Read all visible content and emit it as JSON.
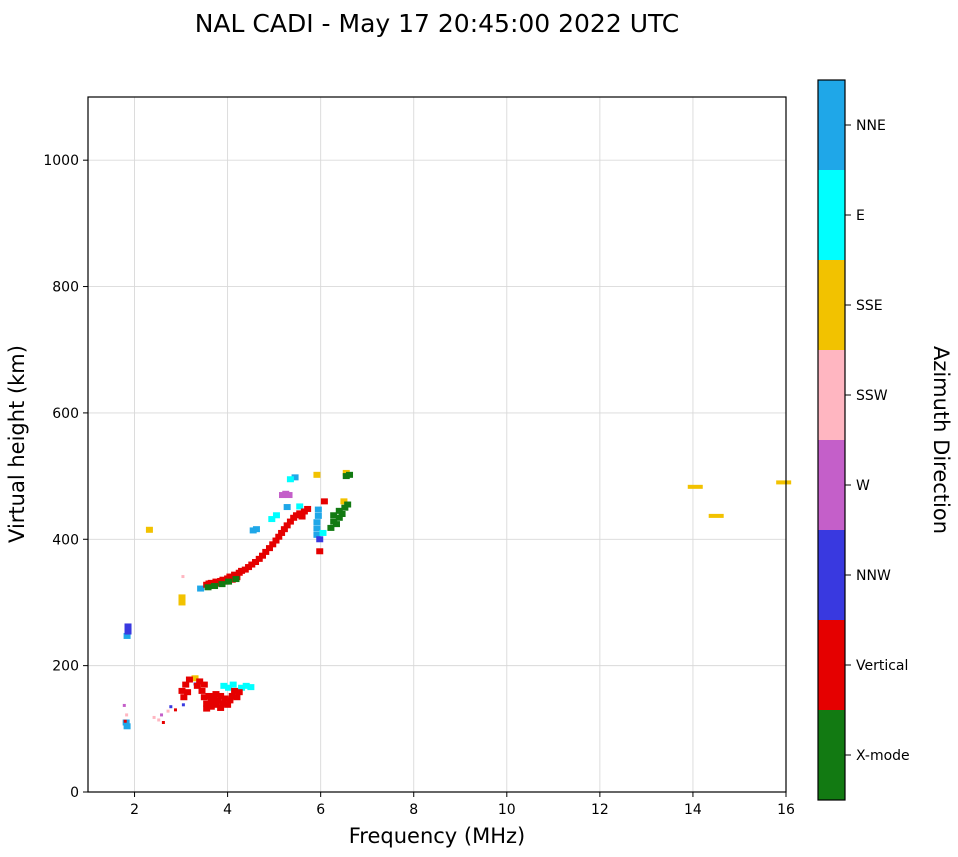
{
  "chart_data": {
    "type": "scatter",
    "title": "NAL CADI - May 17 20:45:00 2022 UTC",
    "xlabel": "Frequency (MHz)",
    "ylabel": "Virtual height (km)",
    "legend_title": "Azimuth Direction",
    "xlim": [
      1,
      16
    ],
    "ylim": [
      0,
      1100
    ],
    "xticks": [
      2,
      4,
      6,
      8,
      10,
      12,
      14,
      16
    ],
    "yticks": [
      0,
      200,
      400,
      600,
      800,
      1000
    ],
    "grid": true,
    "grid_color": "#d9d9d9",
    "categories": [
      {
        "label": "NNE",
        "color": "#1fa7e8"
      },
      {
        "label": "E",
        "color": "#00ffff"
      },
      {
        "label": "SSE",
        "color": "#f2c200"
      },
      {
        "label": "SSW",
        "color": "#ffb6c1"
      },
      {
        "label": "W",
        "color": "#c45fc9"
      },
      {
        "label": "NNW",
        "color": "#3939e0"
      },
      {
        "label": "Vertical",
        "color": "#e50000"
      },
      {
        "label": "X-mode",
        "color": "#127a12"
      }
    ],
    "points": [
      [
        1.82,
        110,
        "NNE"
      ],
      [
        1.84,
        104,
        "NNE"
      ],
      [
        1.84,
        247,
        "NNE"
      ],
      [
        3.42,
        322,
        "NNE"
      ],
      [
        4.55,
        414,
        "NNE"
      ],
      [
        4.62,
        416,
        "NNE"
      ],
      [
        5.28,
        451,
        "NNE"
      ],
      [
        5.45,
        498,
        "NNE"
      ],
      [
        5.92,
        407,
        "NNE"
      ],
      [
        5.92,
        417,
        "NNE"
      ],
      [
        5.92,
        427,
        "NNE"
      ],
      [
        5.95,
        437,
        "NNE"
      ],
      [
        5.95,
        447,
        "NNE"
      ],
      [
        3.92,
        168,
        "E"
      ],
      [
        4.02,
        165,
        "E"
      ],
      [
        4.12,
        170,
        "E"
      ],
      [
        4.3,
        165,
        "E"
      ],
      [
        4.4,
        168,
        "E"
      ],
      [
        4.5,
        166,
        "E"
      ],
      [
        4.95,
        432,
        "E"
      ],
      [
        5.05,
        438,
        "E"
      ],
      [
        5.35,
        495,
        "E"
      ],
      [
        5.55,
        452,
        "E"
      ],
      [
        6.05,
        410,
        "E"
      ],
      [
        2.32,
        415,
        "SSE"
      ],
      [
        3.02,
        300,
        "SSE"
      ],
      [
        3.02,
        308,
        "SSE"
      ],
      [
        3.3,
        180,
        "SSE"
      ],
      [
        5.92,
        502,
        "SSE"
      ],
      [
        6.5,
        460,
        "SSE"
      ],
      [
        6.55,
        505,
        "SSE"
      ],
      [
        14.05,
        483,
        "SSE",
        "w"
      ],
      [
        14.5,
        437,
        "SSE",
        "w"
      ],
      [
        15.95,
        490,
        "SSE",
        "w"
      ],
      [
        1.83,
        122,
        "SSW",
        "s"
      ],
      [
        2.42,
        118,
        "SSW",
        "s"
      ],
      [
        2.52,
        114,
        "SSW",
        "s"
      ],
      [
        2.72,
        128,
        "SSW",
        "s"
      ],
      [
        3.04,
        341,
        "SSW",
        "s"
      ],
      [
        1.78,
        137,
        "W",
        "s"
      ],
      [
        2.58,
        122,
        "W",
        "s"
      ],
      [
        5.18,
        470,
        "W"
      ],
      [
        5.25,
        472,
        "W"
      ],
      [
        5.32,
        470,
        "W"
      ],
      [
        1.86,
        254,
        "NNW"
      ],
      [
        1.86,
        262,
        "NNW"
      ],
      [
        2.78,
        135,
        "NNW",
        "s"
      ],
      [
        3.05,
        138,
        "NNW",
        "s"
      ],
      [
        3.3,
        171,
        "NNW",
        "s"
      ],
      [
        5.98,
        400,
        "NNW"
      ],
      [
        1.8,
        112,
        "Vertical",
        "s"
      ],
      [
        2.62,
        110,
        "Vertical",
        "s"
      ],
      [
        2.88,
        130,
        "Vertical",
        "s"
      ],
      [
        3.02,
        160,
        "Vertical"
      ],
      [
        3.06,
        150,
        "Vertical"
      ],
      [
        3.1,
        170,
        "Vertical"
      ],
      [
        3.14,
        158,
        "Vertical"
      ],
      [
        3.18,
        178,
        "Vertical"
      ],
      [
        3.35,
        168,
        "Vertical"
      ],
      [
        3.4,
        175,
        "Vertical"
      ],
      [
        3.45,
        160,
        "Vertical"
      ],
      [
        3.5,
        170,
        "Vertical"
      ],
      [
        3.5,
        150,
        "Vertical"
      ],
      [
        3.55,
        140,
        "Vertical"
      ],
      [
        3.55,
        132,
        "Vertical"
      ],
      [
        3.6,
        152,
        "Vertical"
      ],
      [
        3.65,
        143,
        "Vertical"
      ],
      [
        3.65,
        135,
        "Vertical"
      ],
      [
        3.7,
        147,
        "Vertical"
      ],
      [
        3.75,
        138,
        "Vertical"
      ],
      [
        3.75,
        155,
        "Vertical"
      ],
      [
        3.8,
        145,
        "Vertical"
      ],
      [
        3.85,
        152,
        "Vertical"
      ],
      [
        3.85,
        133,
        "Vertical"
      ],
      [
        3.9,
        140,
        "Vertical"
      ],
      [
        3.95,
        148,
        "Vertical"
      ],
      [
        4.0,
        138,
        "Vertical"
      ],
      [
        4.05,
        145,
        "Vertical"
      ],
      [
        4.1,
        152,
        "Vertical"
      ],
      [
        4.15,
        160,
        "Vertical"
      ],
      [
        4.2,
        150,
        "Vertical"
      ],
      [
        4.25,
        158,
        "Vertical"
      ],
      [
        3.55,
        328,
        "Vertical"
      ],
      [
        3.6,
        330,
        "Vertical"
      ],
      [
        3.65,
        331,
        "Vertical"
      ],
      [
        3.7,
        329,
        "Vertical"
      ],
      [
        3.75,
        333,
        "Vertical"
      ],
      [
        3.8,
        330,
        "Vertical"
      ],
      [
        3.85,
        334,
        "Vertical"
      ],
      [
        3.9,
        336,
        "Vertical"
      ],
      [
        3.95,
        333,
        "Vertical"
      ],
      [
        4.0,
        338,
        "Vertical"
      ],
      [
        4.05,
        341,
        "Vertical"
      ],
      [
        4.1,
        336,
        "Vertical"
      ],
      [
        4.15,
        344,
        "Vertical"
      ],
      [
        4.2,
        340,
        "Vertical"
      ],
      [
        4.25,
        347,
        "Vertical"
      ],
      [
        4.3,
        350,
        "Vertical"
      ],
      [
        4.38,
        352,
        "Vertical"
      ],
      [
        4.45,
        356,
        "Vertical"
      ],
      [
        4.52,
        360,
        "Vertical"
      ],
      [
        4.6,
        364,
        "Vertical"
      ],
      [
        4.68,
        369,
        "Vertical"
      ],
      [
        4.75,
        374,
        "Vertical"
      ],
      [
        4.82,
        380,
        "Vertical"
      ],
      [
        4.9,
        386,
        "Vertical"
      ],
      [
        4.97,
        392,
        "Vertical"
      ],
      [
        5.04,
        398,
        "Vertical"
      ],
      [
        5.1,
        404,
        "Vertical"
      ],
      [
        5.16,
        410,
        "Vertical"
      ],
      [
        5.22,
        416,
        "Vertical"
      ],
      [
        5.28,
        422,
        "Vertical"
      ],
      [
        5.35,
        428,
        "Vertical"
      ],
      [
        5.42,
        434,
        "Vertical"
      ],
      [
        5.48,
        438,
        "Vertical"
      ],
      [
        5.55,
        441,
        "Vertical"
      ],
      [
        5.6,
        436,
        "Vertical"
      ],
      [
        5.65,
        444,
        "Vertical"
      ],
      [
        5.72,
        448,
        "Vertical"
      ],
      [
        5.98,
        381,
        "Vertical"
      ],
      [
        6.08,
        460,
        "Vertical"
      ],
      [
        3.58,
        324,
        "X-mode"
      ],
      [
        3.72,
        326,
        "X-mode"
      ],
      [
        3.88,
        329,
        "X-mode"
      ],
      [
        4.02,
        333,
        "X-mode"
      ],
      [
        4.18,
        337,
        "X-mode"
      ],
      [
        6.22,
        418,
        "X-mode"
      ],
      [
        6.28,
        428,
        "X-mode"
      ],
      [
        6.28,
        438,
        "X-mode"
      ],
      [
        6.34,
        424,
        "X-mode"
      ],
      [
        6.4,
        434,
        "X-mode"
      ],
      [
        6.4,
        445,
        "X-mode"
      ],
      [
        6.46,
        440,
        "X-mode"
      ],
      [
        6.52,
        450,
        "X-mode"
      ],
      [
        6.58,
        455,
        "X-mode"
      ],
      [
        6.55,
        500,
        "X-mode"
      ],
      [
        6.62,
        502,
        "X-mode"
      ]
    ]
  }
}
